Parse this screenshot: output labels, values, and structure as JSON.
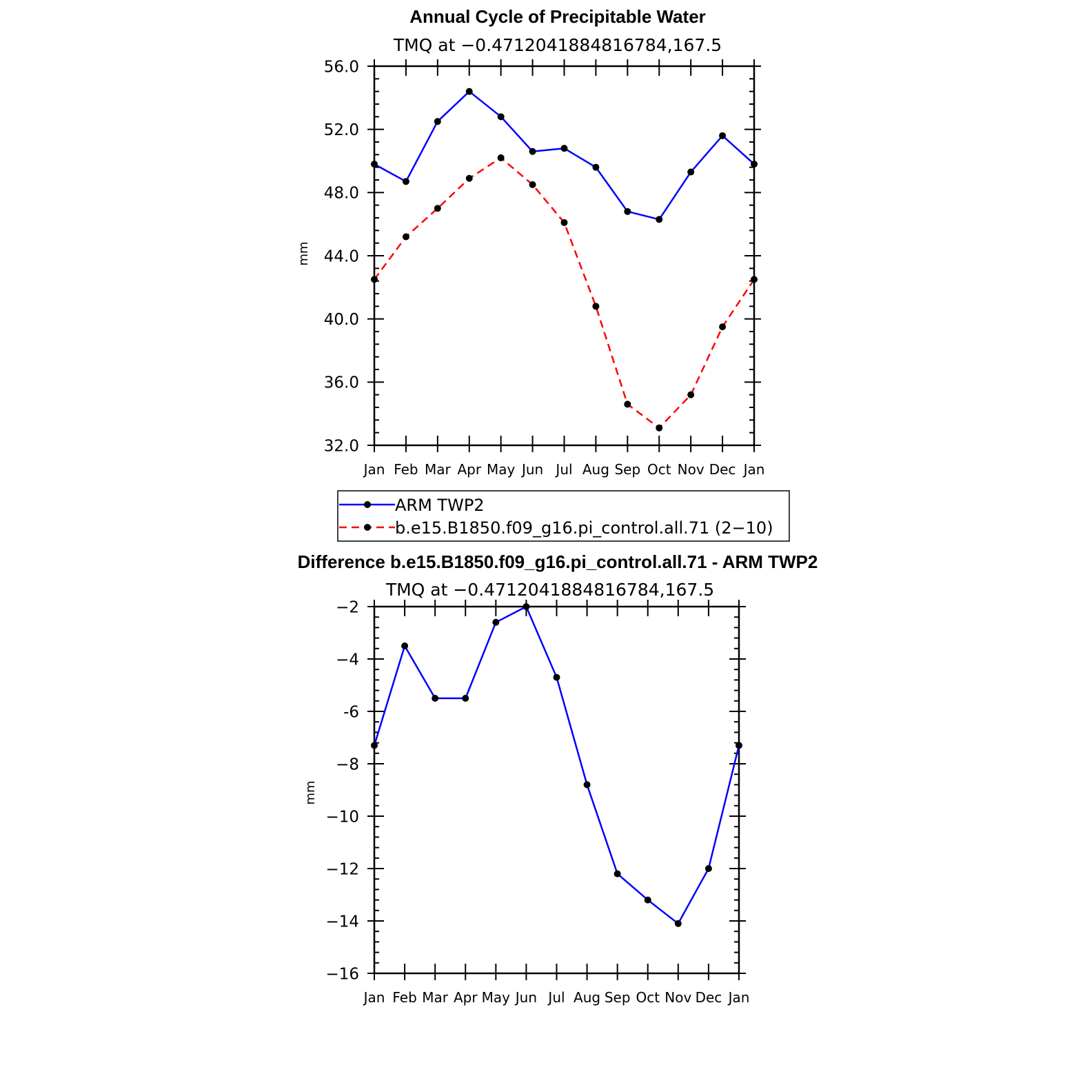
{
  "chart_data": [
    {
      "type": "line",
      "title": "Annual Cycle of Precipitable Water",
      "subtitle": "TMQ  at  −0.4712041884816784,167.5",
      "ylabel": "mm",
      "xlabel": "",
      "categories": [
        "Jan",
        "Feb",
        "Mar",
        "Apr",
        "May",
        "Jun",
        "Jul",
        "Aug",
        "Sep",
        "Oct",
        "Nov",
        "Dec",
        "Jan"
      ],
      "ylim": [
        32.0,
        56.0
      ],
      "yticks": [
        32.0,
        36.0,
        40.0,
        44.0,
        48.0,
        52.0,
        56.0
      ],
      "ytick_labels": [
        "32.0",
        "36.0",
        "40.0",
        "44.0",
        "48.0",
        "52.0",
        "56.0"
      ],
      "series": [
        {
          "name": "ARM TWP2",
          "color": "#0000ff",
          "dash": "solid",
          "values": [
            49.8,
            48.7,
            52.5,
            54.4,
            52.8,
            50.6,
            50.8,
            49.6,
            46.8,
            46.3,
            49.3,
            51.6,
            49.8
          ]
        },
        {
          "name": "b.e15.B1850.f09_g16.pi_control.all.71 (2−10)",
          "color": "#ff0000",
          "dash": "dashed",
          "values": [
            42.5,
            45.2,
            47.0,
            48.9,
            50.2,
            48.5,
            46.1,
            40.8,
            34.6,
            33.1,
            35.2,
            39.5,
            42.5
          ]
        }
      ],
      "legend": {
        "placement": "bottom",
        "entries": [
          "ARM TWP2",
          "b.e15.B1850.f09_g16.pi_control.all.71  (2−10)"
        ]
      }
    },
    {
      "type": "line",
      "title": "Difference b.e15.B1850.f09_g16.pi_control.all.71 - ARM TWP2",
      "subtitle": "TMQ  at  −0.4712041884816784,167.5",
      "ylabel": "mm",
      "xlabel": "",
      "categories": [
        "Jan",
        "Feb",
        "Mar",
        "Apr",
        "May",
        "Jun",
        "Jul",
        "Aug",
        "Sep",
        "Oct",
        "Nov",
        "Dec",
        "Jan"
      ],
      "ylim": [
        -16,
        -2
      ],
      "yticks": [
        -16,
        -14,
        -12,
        -10,
        -8,
        -6,
        -4,
        -2
      ],
      "ytick_labels": [
        "−16",
        "−14",
        "−12",
        "−10",
        "−8",
        "-6",
        "−4",
        "−2"
      ],
      "series": [
        {
          "name": "Difference",
          "color": "#0000ff",
          "dash": "solid",
          "values": [
            -7.3,
            -3.5,
            -5.5,
            -5.5,
            -2.6,
            -2.0,
            -4.7,
            -8.8,
            -12.2,
            -13.2,
            -14.1,
            -12.0,
            -7.3
          ]
        }
      ]
    }
  ]
}
